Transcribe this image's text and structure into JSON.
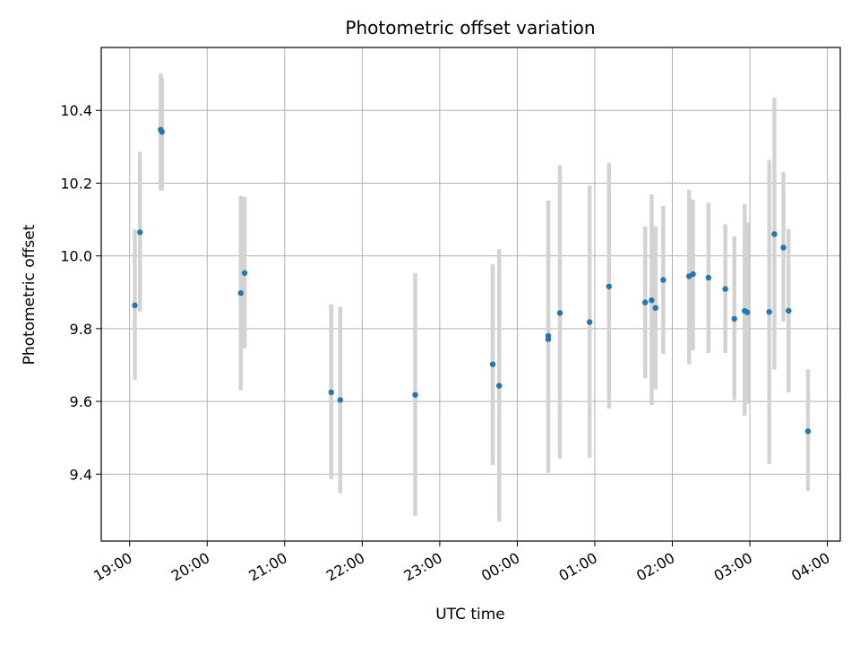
{
  "chart_data": {
    "type": "scatter",
    "title": "Photometric offset variation",
    "xlabel": "UTC time",
    "ylabel": "Photometric offset",
    "grid": true,
    "x_tick_labels": [
      "19:00",
      "20:00",
      "21:00",
      "22:00",
      "23:00",
      "00:00",
      "01:00",
      "02:00",
      "03:00",
      "04:00"
    ],
    "y_tick_labels": [
      "9.4",
      "9.6",
      "9.8",
      "10.0",
      "10.2",
      "10.4"
    ],
    "y_ticks": [
      9.4,
      9.6,
      9.8,
      10.0,
      10.2,
      10.4
    ],
    "xlim": [
      "18:38",
      "04:10"
    ],
    "ylim": [
      9.216,
      10.573
    ],
    "marker_color": "#1f77b4",
    "errorbar_color": "#d3d3d3",
    "x": [
      "19:04",
      "19:08",
      "19:24",
      "19:25",
      "20:26",
      "20:29",
      "21:36",
      "21:43",
      "22:41",
      "23:41",
      "23:46",
      "00:24",
      "00:24",
      "00:33",
      "00:56",
      "01:11",
      "01:39",
      "01:44",
      "01:47",
      "01:53",
      "02:13",
      "02:16",
      "02:28",
      "02:41",
      "02:48",
      "02:56",
      "02:58",
      "03:15",
      "03:19",
      "03:26",
      "03:30",
      "03:45"
    ],
    "y": [
      9.864,
      10.065,
      10.347,
      10.341,
      9.898,
      9.953,
      9.625,
      9.604,
      9.618,
      9.702,
      9.643,
      9.78,
      9.771,
      9.843,
      9.818,
      9.916,
      9.872,
      9.878,
      9.857,
      9.934,
      9.944,
      9.95,
      9.94,
      9.909,
      9.827,
      9.849,
      9.845,
      9.846,
      10.06,
      10.023,
      9.849,
      9.518
    ],
    "y_low": [
      9.659,
      9.847,
      10.18,
      10.18,
      9.631,
      9.746,
      9.386,
      9.348,
      9.285,
      9.425,
      9.27,
      9.404,
      9.404,
      9.443,
      9.445,
      9.58,
      9.664,
      9.59,
      9.633,
      9.73,
      9.702,
      9.741,
      9.733,
      9.733,
      9.604,
      9.561,
      9.593,
      9.428,
      9.688,
      9.82,
      9.625,
      9.354
    ],
    "y_high": [
      10.073,
      10.286,
      10.502,
      10.49,
      10.165,
      10.162,
      9.867,
      9.86,
      9.953,
      9.977,
      10.018,
      10.152,
      10.152,
      10.249,
      10.193,
      10.256,
      10.081,
      10.169,
      10.081,
      10.137,
      10.182,
      10.155,
      10.146,
      10.087,
      10.054,
      10.143,
      10.092,
      10.264,
      10.435,
      10.23,
      10.074,
      9.688
    ]
  }
}
